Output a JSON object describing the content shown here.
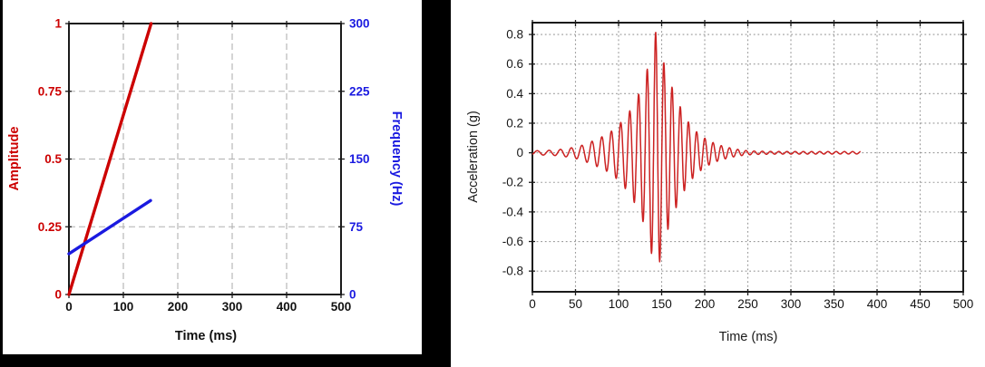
{
  "figure": {
    "background": "#ffffff",
    "left_panel_frame_color": "#000000",
    "border_color": "#1a1a1a"
  },
  "chart_data": [
    {
      "id": "input-sweep-profile",
      "type": "line",
      "title": "",
      "xlabel": "Time (ms)",
      "xlim": [
        0,
        500
      ],
      "x_ticks": [
        0,
        100,
        200,
        300,
        400,
        500
      ],
      "x_tick_labels": [
        "0",
        "100",
        "200",
        "300",
        "400",
        "500"
      ],
      "grid": "dashed",
      "grid_color": "#b0b0b0",
      "left_axis": {
        "label": "Amplitude",
        "color": "#cc0000",
        "lim": [
          0,
          1
        ],
        "ticks": [
          0,
          0.25,
          0.5,
          0.75,
          1
        ],
        "tick_labels": [
          "0",
          "0.25",
          "0.5",
          "0.75",
          "1"
        ]
      },
      "right_axis": {
        "label": "Frequency (Hz)",
        "color": "#1a1ae0",
        "lim": [
          0,
          300
        ],
        "ticks": [
          0,
          75,
          150,
          225,
          300
        ],
        "tick_labels": [
          "0",
          "75",
          "150",
          "225",
          "300"
        ]
      },
      "series": [
        {
          "name": "amplitude-ramp",
          "axis": "left",
          "color": "#cc0000",
          "width": 3.4,
          "points": [
            [
              0,
              0
            ],
            [
              151,
              1
            ]
          ]
        },
        {
          "name": "frequency-sweep",
          "axis": "right",
          "color": "#1a1ae0",
          "width": 3.4,
          "points": [
            [
              0,
              45
            ],
            [
              150,
              104
            ]
          ]
        }
      ]
    },
    {
      "id": "acceleration-response",
      "type": "line",
      "title": "",
      "xlabel": "Time (ms)",
      "ylabel": "Acceleration (g)",
      "xlim": [
        0,
        500
      ],
      "ylim": [
        -0.94,
        0.88
      ],
      "x_ticks": [
        0,
        50,
        100,
        150,
        200,
        250,
        300,
        350,
        400,
        450,
        500
      ],
      "x_tick_labels": [
        "0",
        "50",
        "100",
        "150",
        "200",
        "250",
        "300",
        "350",
        "400",
        "450",
        "500"
      ],
      "y_ticks": [
        -0.8,
        -0.6,
        -0.4,
        -0.2,
        0,
        0.2,
        0.4,
        0.6,
        0.8
      ],
      "y_tick_labels": [
        "-0.8",
        "-0.6",
        "-0.4",
        "-0.2",
        "0",
        "0.2",
        "0.4",
        "0.6",
        "0.8"
      ],
      "grid": "dotted",
      "grid_color": "#999999",
      "series": [
        {
          "name": "acceleration-waveform",
          "color": "#cc2222",
          "width": 1.5,
          "signal": {
            "description": "swept-sine burst; peak +0.82 g at ~143 ms, min ~-0.78 g, decays to ~0 by ~250 ms, trace ends ~380 ms",
            "freq_start_hz": 70,
            "freq_end_hz": 105,
            "sweep_end_ms": 150,
            "trace_end_ms": 381,
            "phase_cycles": 0.854,
            "peak": {
              "t_ms": 143,
              "g": 0.82
            },
            "envelope_g": [
              [
                0,
                0.013
              ],
              [
                25,
                0.018
              ],
              [
                40,
                0.028
              ],
              [
                55,
                0.045
              ],
              [
                70,
                0.08
              ],
              [
                85,
                0.12
              ],
              [
                95,
                0.16
              ],
              [
                105,
                0.22
              ],
              [
                115,
                0.3
              ],
              [
                122,
                0.38
              ],
              [
                128,
                0.46
              ],
              [
                134,
                0.58
              ],
              [
                139,
                0.7
              ],
              [
                143,
                0.82
              ],
              [
                147,
                0.76
              ],
              [
                151,
                0.64
              ],
              [
                156,
                0.54
              ],
              [
                161,
                0.46
              ],
              [
                167,
                0.37
              ],
              [
                174,
                0.28
              ],
              [
                182,
                0.2
              ],
              [
                191,
                0.14
              ],
              [
                201,
                0.095
              ],
              [
                211,
                0.065
              ],
              [
                221,
                0.045
              ],
              [
                233,
                0.028
              ],
              [
                246,
                0.016
              ],
              [
                259,
                0.011
              ],
              [
                281,
                0.009
              ],
              [
                381,
                0.008
              ]
            ]
          }
        }
      ]
    }
  ]
}
